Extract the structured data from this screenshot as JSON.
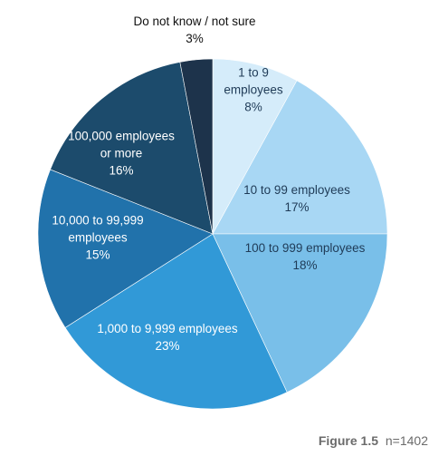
{
  "chart_data": {
    "type": "pie",
    "title": "",
    "start_angle_deg": 0,
    "direction": "clockwise",
    "slices": [
      {
        "label_lines": [
          "1 to 9",
          "employees",
          "8%"
        ],
        "value": 8,
        "color": "#d5ecfa",
        "text_color": "#1f3b57"
      },
      {
        "label_lines": [
          "10 to 99 employees",
          "17%"
        ],
        "value": 17,
        "color": "#a8d7f4",
        "text_color": "#1f3b57"
      },
      {
        "label_lines": [
          "100 to 999 employees",
          "18%"
        ],
        "value": 18,
        "color": "#79bfe9",
        "text_color": "#1f3b57"
      },
      {
        "label_lines": [
          "1,000 to 9,999 employees",
          "23%"
        ],
        "value": 23,
        "color": "#3199d7",
        "text_color": "#ffffff"
      },
      {
        "label_lines": [
          "10,000 to 99,999",
          "employees",
          "15%"
        ],
        "value": 15,
        "color": "#2172ab",
        "text_color": "#ffffff"
      },
      {
        "label_lines": [
          "100,000 employees",
          "or more",
          "16%"
        ],
        "value": 16,
        "color": "#1c4b6c",
        "text_color": "#ffffff"
      },
      {
        "label_lines": [
          "Do not know / not sure",
          "3%"
        ],
        "value": 3,
        "color": "#1d334b",
        "text_color": "#111111",
        "label_outside": true
      }
    ]
  },
  "caption": {
    "figure": "Figure 1.5",
    "note": "n=1402"
  }
}
